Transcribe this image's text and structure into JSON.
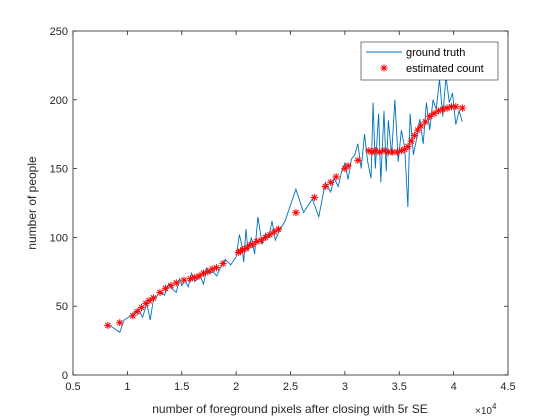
{
  "chart_data": {
    "type": "line",
    "xlabel": "number of foreground pixels after closing with 5r SE",
    "ylabel": "number of people",
    "x_exponent_label": "×10",
    "x_exponent_power": "4",
    "xlim": [
      0.5,
      4.5
    ],
    "ylim": [
      0,
      250
    ],
    "x_ticks": [
      0.5,
      1,
      1.5,
      2,
      2.5,
      3,
      3.5,
      4,
      4.5
    ],
    "x_tick_labels": [
      "0.5",
      "1",
      "1.5",
      "2",
      "2.5",
      "3",
      "3.5",
      "4",
      "4.5"
    ],
    "y_ticks": [
      0,
      50,
      100,
      150,
      200,
      250
    ],
    "y_tick_labels": [
      "0",
      "50",
      "100",
      "150",
      "200",
      "250"
    ],
    "grid": false,
    "legend_position": "top-right",
    "colors": {
      "ground_truth": "#0072BD",
      "estimated": "#FF0000",
      "axes": "#262626"
    },
    "series": [
      {
        "name": "ground truth",
        "type": "line",
        "x": [
          0.82,
          0.93,
          0.97,
          1.05,
          1.1,
          1.14,
          1.18,
          1.21,
          1.24,
          1.27,
          1.3,
          1.34,
          1.38,
          1.42,
          1.45,
          1.48,
          1.5,
          1.53,
          1.56,
          1.59,
          1.62,
          1.65,
          1.67,
          1.7,
          1.73,
          1.76,
          1.79,
          1.82,
          1.85,
          1.9,
          1.95,
          2.0,
          2.03,
          2.05,
          2.07,
          2.09,
          2.11,
          2.14,
          2.17,
          2.2,
          2.24,
          2.27,
          2.3,
          2.33,
          2.36,
          2.4,
          2.45,
          2.55,
          2.62,
          2.7,
          2.76,
          2.82,
          2.87,
          2.9,
          2.94,
          2.97,
          3.0,
          3.03,
          3.06,
          3.09,
          3.12,
          3.15,
          3.18,
          3.21,
          3.24,
          3.26,
          3.28,
          3.31,
          3.33,
          3.36,
          3.38,
          3.4,
          3.43,
          3.46,
          3.49,
          3.52,
          3.55,
          3.58,
          3.6,
          3.63,
          3.66,
          3.69,
          3.72,
          3.75,
          3.78,
          3.81,
          3.84,
          3.87,
          3.9,
          3.93,
          3.96,
          3.99,
          4.02,
          4.05,
          4.08
        ],
        "y": [
          37,
          31,
          40,
          44,
          48,
          42,
          52,
          40,
          55,
          57,
          61,
          58,
          66,
          62,
          60,
          70,
          65,
          69,
          64,
          74,
          68,
          70,
          72,
          66,
          78,
          74,
          75,
          72,
          77,
          84,
          80,
          86,
          102,
          95,
          82,
          106,
          90,
          100,
          88,
          115,
          95,
          103,
          100,
          112,
          98,
          105,
          112,
          135,
          118,
          128,
          115,
          140,
          133,
          143,
          137,
          148,
          154,
          142,
          157,
          160,
          168,
          150,
          175,
          155,
          143,
          198,
          150,
          190,
          140,
          192,
          148,
          185,
          160,
          200,
          155,
          178,
          165,
          122,
          190,
          160,
          172,
          186,
          168,
          198,
          178,
          200,
          193,
          215,
          188,
          217,
          198,
          205,
          182,
          192,
          184
        ]
      },
      {
        "name": "estimated count",
        "type": "scatter",
        "marker": "*",
        "x": [
          0.82,
          0.93,
          1.05,
          1.09,
          1.13,
          1.17,
          1.2,
          1.24,
          1.3,
          1.35,
          1.4,
          1.45,
          1.52,
          1.58,
          1.62,
          1.66,
          1.7,
          1.74,
          1.78,
          1.82,
          1.88,
          2.02,
          2.04,
          2.06,
          2.09,
          2.12,
          2.15,
          2.19,
          2.23,
          2.27,
          2.31,
          2.35,
          2.39,
          2.55,
          2.72,
          2.82,
          2.87,
          2.92,
          3.0,
          3.03,
          3.12,
          3.22,
          3.25,
          3.28,
          3.32,
          3.36,
          3.4,
          3.44,
          3.48,
          3.52,
          3.55,
          3.58,
          3.61,
          3.64,
          3.67,
          3.7,
          3.74,
          3.78,
          3.82,
          3.86,
          3.9,
          3.94,
          3.98,
          4.02,
          4.08
        ],
        "y": [
          36,
          38,
          43,
          46,
          49,
          52,
          54,
          56,
          60,
          63,
          65,
          67,
          69,
          70,
          71,
          72,
          74,
          75,
          77,
          78,
          81,
          89,
          90,
          91,
          92,
          94,
          95,
          97,
          98,
          100,
          102,
          104,
          106,
          118,
          129,
          137,
          140,
          144,
          150,
          152,
          156,
          163,
          162,
          163,
          162,
          163,
          162,
          162,
          162,
          163,
          164,
          166,
          170,
          174,
          178,
          181,
          184,
          188,
          190,
          192,
          193,
          194,
          195,
          195,
          194
        ]
      }
    ]
  }
}
